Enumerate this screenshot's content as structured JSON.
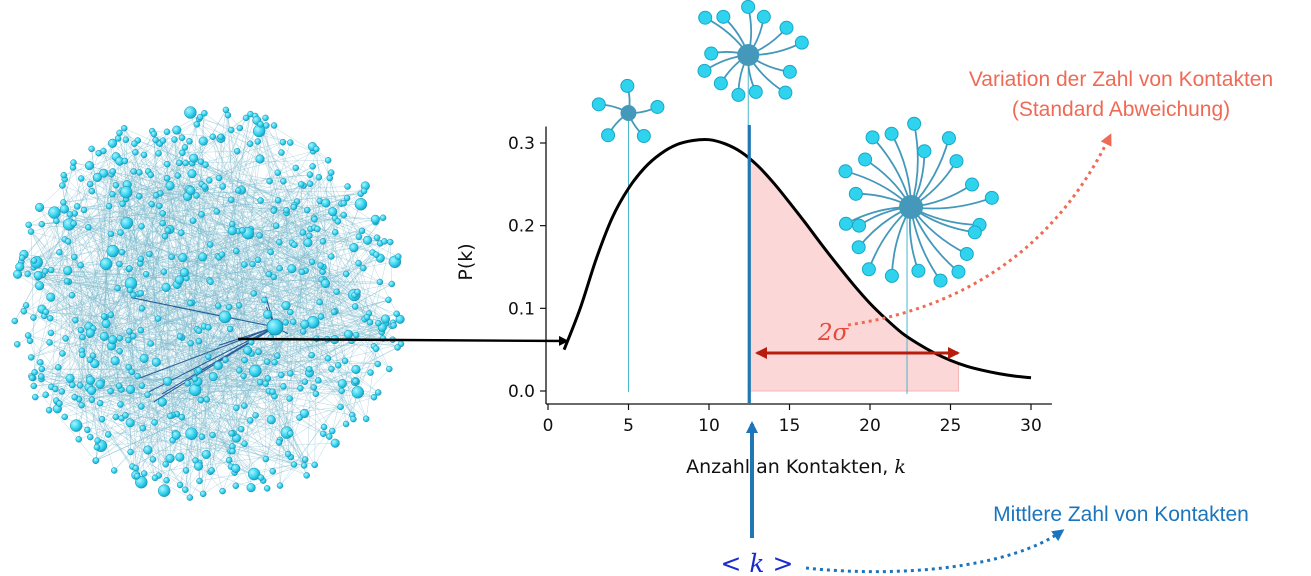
{
  "colors": {
    "node": "#2fd3ee",
    "node_stroke": "#1d8fb0",
    "edge": "#78b8cc",
    "hub": "#4499bb",
    "mean_line": "#1f77b4",
    "sigma": "#b71c0c",
    "sigma_fill": "#fcd7d7",
    "red_text": "#ef6a55",
    "blue_text": "#1c75bc",
    "k_text": "#1a2ad0",
    "curve": "#000000"
  },
  "chart_data": {
    "type": "line",
    "x": [
      1,
      2,
      3,
      4,
      5,
      6,
      7,
      8,
      9,
      10,
      11,
      12,
      13,
      14,
      15,
      16,
      17,
      18,
      19,
      20,
      21,
      22,
      23,
      24,
      25,
      26,
      27,
      28,
      29,
      30
    ],
    "y": [
      0.05,
      0.1,
      0.16,
      0.21,
      0.245,
      0.27,
      0.287,
      0.298,
      0.303,
      0.304,
      0.299,
      0.289,
      0.273,
      0.252,
      0.228,
      0.203,
      0.177,
      0.152,
      0.128,
      0.106,
      0.087,
      0.07,
      0.057,
      0.046,
      0.037,
      0.03,
      0.025,
      0.021,
      0.018,
      0.016
    ],
    "xlim": [
      0,
      30
    ],
    "ylim": [
      0,
      0.32
    ],
    "xticks": [
      "0",
      "5",
      "10",
      "15",
      "20",
      "25",
      "30"
    ],
    "yticks": [
      "0.0",
      "0.1",
      "0.2",
      "0.3"
    ],
    "xlabel": "Anzahl an Kontakten, ",
    "xlabel_var": "k",
    "ylabel": "P(k)",
    "mean_k": 12.5,
    "sigma_band": [
      12.5,
      25.5
    ],
    "example_degrees": [
      5,
      12.5,
      22.3
    ]
  },
  "annotations": {
    "variation_line1": "Variation der Zahl von Kontakten",
    "variation_line2": "(Standard Abweichung)",
    "sigma_label": "2σ",
    "mean_label": "Mittlere Zahl von Kontakten",
    "k_label": "< k >"
  }
}
